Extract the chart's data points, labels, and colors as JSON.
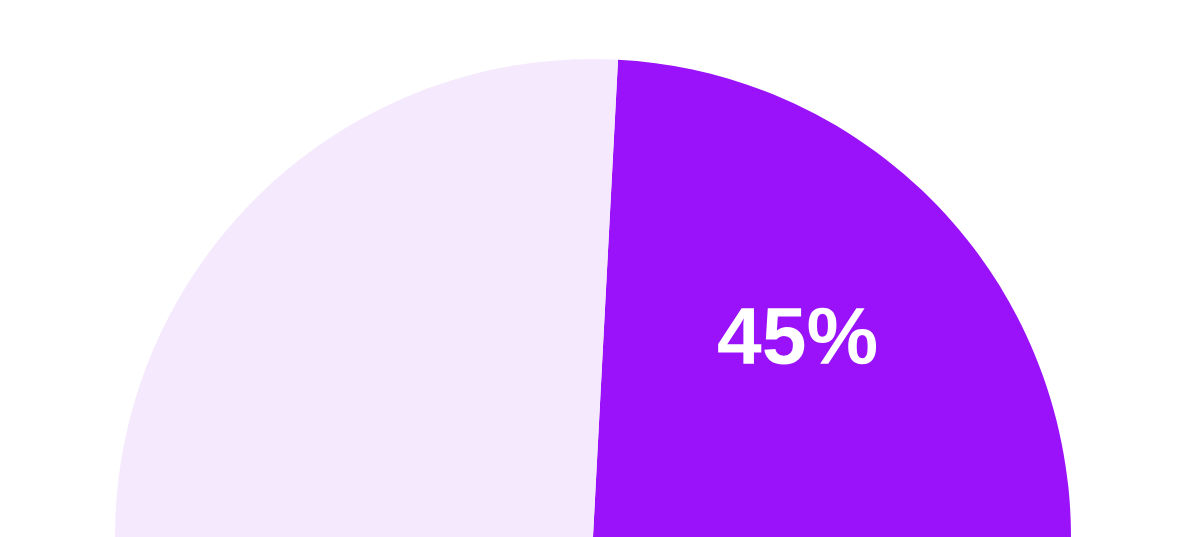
{
  "chart_data": {
    "type": "pie",
    "categories": [
      null,
      null
    ],
    "values": [
      45,
      55
    ],
    "colors": [
      "#9a12fa",
      "#f5e9fe"
    ],
    "value_labels": [
      "45%",
      null
    ]
  }
}
